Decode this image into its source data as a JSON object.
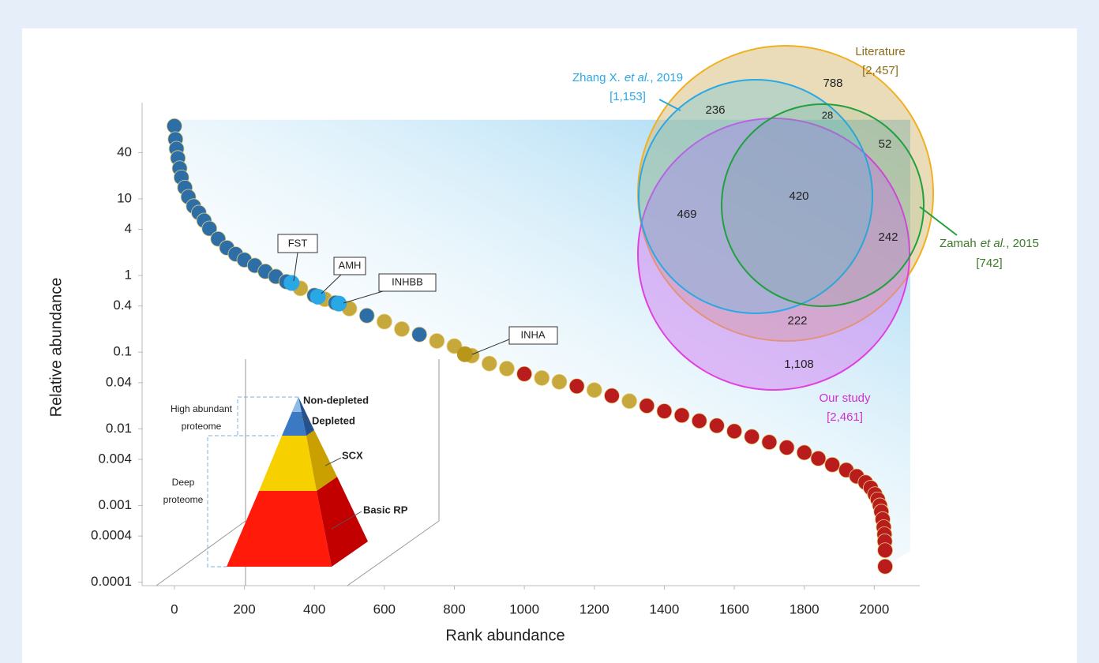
{
  "chart_data": {
    "type": "scatter",
    "xlabel": "Rank abundance",
    "ylabel": "Relative abundance",
    "x": [
      0,
      3,
      6,
      10,
      15,
      20,
      30,
      40,
      55,
      70,
      85,
      100,
      125,
      150,
      175,
      200,
      230,
      260,
      290,
      320,
      360,
      400,
      430,
      460,
      500,
      550,
      600,
      650,
      700,
      750,
      800,
      850,
      900,
      950,
      1000,
      1050,
      1100,
      1150,
      1200,
      1250,
      1300,
      1350,
      1400,
      1450,
      1500,
      1550,
      1600,
      1650,
      1700,
      1750,
      1800,
      1840,
      1880,
      1920,
      1950,
      1975,
      1990,
      2002,
      2010,
      2016,
      2020,
      2024,
      2027,
      2029,
      2030,
      2031,
      2031
    ],
    "values": [
      89,
      60,
      45,
      34,
      25,
      19,
      14,
      10.6,
      8,
      6.6,
      5.2,
      4.1,
      3,
      2.3,
      1.9,
      1.6,
      1.35,
      1.13,
      0.97,
      0.83,
      0.68,
      0.55,
      0.49,
      0.44,
      0.37,
      0.3,
      0.25,
      0.2,
      0.17,
      0.14,
      0.12,
      0.09,
      0.071,
      0.061,
      0.052,
      0.046,
      0.041,
      0.036,
      0.032,
      0.027,
      0.023,
      0.02,
      0.017,
      0.015,
      0.0127,
      0.011,
      0.0093,
      0.0079,
      0.0067,
      0.0057,
      0.0049,
      0.0041,
      0.0034,
      0.0029,
      0.0024,
      0.002,
      0.0017,
      0.0014,
      0.0012,
      0.001,
      0.00083,
      0.00066,
      0.00052,
      0.00042,
      0.00034,
      0.00026,
      0.00016
    ],
    "colors": [
      "#2e6ea6",
      "#2e6ea6",
      "#2e6ea6",
      "#2e6ea6",
      "#2e6ea6",
      "#2e6ea6",
      "#2e6ea6",
      "#2e6ea6",
      "#2e6ea6",
      "#2e6ea6",
      "#2e6ea6",
      "#2e6ea6",
      "#2e6ea6",
      "#2e6ea6",
      "#2e6ea6",
      "#2e6ea6",
      "#2e6ea6",
      "#2e6ea6",
      "#2e6ea6",
      "#2e6ea6",
      "#c7a83c",
      "#2e6ea6",
      "#c7a83c",
      "#2e6ea6",
      "#c7a83c",
      "#2e6ea6",
      "#c7a83c",
      "#c7a83c",
      "#2e6ea6",
      "#c7a83c",
      "#c7a83c",
      "#c7a83c",
      "#c7a83c",
      "#c7a83c",
      "#b81c1c",
      "#c7a83c",
      "#c7a83c",
      "#b81c1c",
      "#c7a83c",
      "#b81c1c",
      "#c7a83c",
      "#b81c1c",
      "#b81c1c",
      "#b81c1c",
      "#b81c1c",
      "#b81c1c",
      "#b81c1c",
      "#b81c1c",
      "#b81c1c",
      "#b81c1c",
      "#b81c1c",
      "#b81c1c",
      "#b81c1c",
      "#b81c1c",
      "#b81c1c",
      "#b81c1c",
      "#b81c1c",
      "#b81c1c",
      "#b81c1c",
      "#b81c1c",
      "#b81c1c",
      "#b81c1c",
      "#b81c1c",
      "#b81c1c",
      "#b81c1c",
      "#b81c1c",
      "#b81c1c"
    ],
    "xlim": [
      -90,
      2130
    ],
    "xticks": [
      0,
      200,
      400,
      600,
      800,
      1000,
      1200,
      1400,
      1600,
      1800,
      2000
    ],
    "ylim": [
      9e-05,
      180
    ],
    "yticks": [
      40,
      10,
      4,
      1,
      0.4,
      0.1,
      0.04,
      0.01,
      0.004,
      0.001,
      0.0004,
      0.0001
    ],
    "log_y": true,
    "annotations": [
      {
        "text": "FST",
        "x": 335,
        "y": 0.8,
        "color": "#2aa8e6"
      },
      {
        "text": "AMH",
        "x": 410,
        "y": 0.53,
        "color": "#2aa8e6"
      },
      {
        "text": "INHBB",
        "x": 470,
        "y": 0.43,
        "color": "#2aa8e6"
      },
      {
        "text": "INHA",
        "x": 830,
        "y": 0.094,
        "color": "#b8961a"
      }
    ]
  },
  "venn": {
    "sets": [
      {
        "name": "Literature",
        "count": "[2,457]"
      },
      {
        "name_parts": [
          "Zhang X.",
          "et al.",
          ", 2019"
        ],
        "count": "[1,153]"
      },
      {
        "name_parts": [
          "Zamah",
          "et al.",
          ", 2015"
        ],
        "count": "[742]"
      },
      {
        "name": "Our study",
        "count": "[2,461]"
      }
    ],
    "regions": [
      "788",
      "236",
      "28",
      "52",
      "420",
      "469",
      "242",
      "222",
      "1,108"
    ]
  },
  "pyramid": {
    "levels": [
      "Non-depleted",
      "Depleted",
      "SCX",
      "Basic RP"
    ],
    "brackets": [
      [
        "High abundant",
        "proteome"
      ],
      [
        "Deep",
        "proteome"
      ]
    ]
  }
}
